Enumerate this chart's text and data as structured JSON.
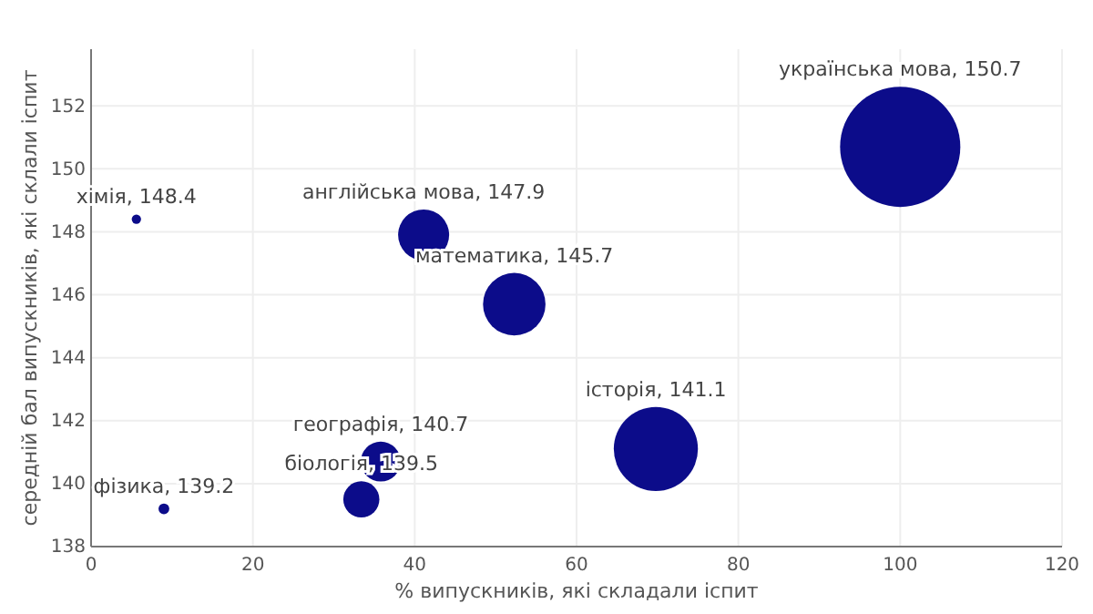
{
  "chart_data": {
    "type": "bubble",
    "xlabel": "% випускників, які складали іспит",
    "ylabel": "середній бал випускників, які склали іспит",
    "xlim": [
      0,
      120
    ],
    "ylim": [
      138,
      153.8
    ],
    "xticks": [
      0,
      20,
      40,
      60,
      80,
      100,
      120
    ],
    "yticks": [
      138,
      140,
      142,
      144,
      146,
      148,
      150,
      152
    ],
    "grid": true,
    "series": [
      {
        "color": "#0c0c8a",
        "x": [
          5.6,
          9.0,
          33.4,
          35.8,
          41.1,
          52.3,
          69.8,
          100
        ],
        "values": [
          148.4,
          139.2,
          139.5,
          140.7,
          147.9,
          145.7,
          141.1,
          150.7
        ],
        "sizes": [
          0.006,
          0.008,
          0.09,
          0.11,
          0.18,
          0.27,
          0.49,
          1
        ],
        "value_labels": [
          "хімія, 148.4",
          "фізика, 139.2",
          "біологія, 139.5",
          "географія, 140.7",
          "англійська мова, 147.9",
          "математика, 145.7",
          "історія, 141.1",
          "українська мова, 150.7"
        ]
      }
    ]
  }
}
